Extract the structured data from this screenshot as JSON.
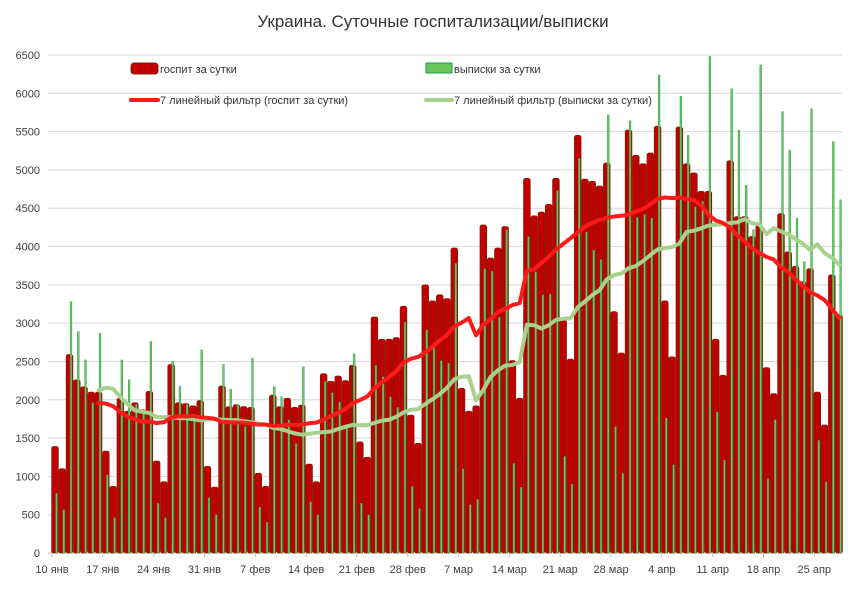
{
  "chart_data": {
    "type": "bar",
    "title": "Украина. Суточные госпитализации/выписки",
    "xlabel": "",
    "ylabel": "",
    "ylim": [
      0,
      6500
    ],
    "yticks": [
      0,
      500,
      1000,
      1500,
      2000,
      2500,
      3000,
      3500,
      4000,
      4500,
      5000,
      5500,
      6000,
      6500
    ],
    "grid": true,
    "legend_position": "top",
    "x_start": "10 янв",
    "x_end": "28 апр",
    "xtick_labels": [
      "10 янв",
      "17 янв",
      "24 янв",
      "31 янв",
      "7 фев",
      "14 фев",
      "21 фев",
      "28 фев",
      "7 мар",
      "14 мар",
      "21 мар",
      "28 мар",
      "4 апр",
      "11 апр",
      "18 апр",
      "25 апр"
    ],
    "series": [
      {
        "name": "госпит за сутки",
        "kind": "bar",
        "color": "#c00000",
        "values": [
          1390,
          1100,
          2590,
          2260,
          2170,
          2100,
          2100,
          1330,
          870,
          2020,
          1850,
          1960,
          1870,
          2110,
          1200,
          930,
          2460,
          1960,
          1950,
          1920,
          1990,
          1130,
          860,
          2180,
          1910,
          1935,
          1910,
          1900,
          1040,
          870,
          2060,
          1910,
          2020,
          1900,
          1930,
          1160,
          930,
          2340,
          2240,
          2310,
          2250,
          2450,
          1450,
          1250,
          3080,
          2790,
          2790,
          2810,
          3220,
          1800,
          1430,
          3500,
          3290,
          3370,
          3320,
          3980,
          2150,
          1850,
          1920,
          4280,
          3850,
          3980,
          4260,
          2510,
          2020,
          4890,
          4400,
          4450,
          4550,
          4890,
          3040,
          2530,
          5450,
          4880,
          4850,
          4790,
          5090,
          3150,
          2610,
          5520,
          5190,
          5080,
          5220,
          5570,
          3290,
          2560,
          5560,
          5080,
          4960,
          4720,
          4720,
          2790,
          2320,
          5120,
          4390,
          4390,
          4130,
          4280,
          2420,
          2080,
          4430,
          3930,
          3740,
          3540,
          3710,
          2100,
          1670,
          3630,
          3110
        ]
      },
      {
        "name": "выписки за сутки",
        "kind": "bar",
        "color": "#6cc55a",
        "values": [
          780,
          565,
          3280,
          2890,
          2520,
          1960,
          2870,
          1020,
          460,
          2520,
          2260,
          1940,
          1830,
          2760,
          650,
          460,
          2500,
          2175,
          1940,
          1740,
          2650,
          720,
          500,
          2460,
          2140,
          1935,
          1650,
          2545,
          600,
          400,
          2170,
          2040,
          1740,
          1430,
          2430,
          670,
          500,
          2240,
          2090,
          1970,
          1630,
          2600,
          650,
          500,
          2450,
          2300,
          2040,
          1900,
          3010,
          870,
          580,
          2910,
          2740,
          2510,
          2480,
          3780,
          1100,
          630,
          700,
          3710,
          3680,
          3080,
          4220,
          1170,
          860,
          4130,
          3670,
          3370,
          3380,
          4730,
          1260,
          900,
          5150,
          4190,
          3950,
          3830,
          5720,
          1650,
          1040,
          5640,
          4380,
          4420,
          4370,
          6240,
          1760,
          1150,
          5960,
          5450,
          4520,
          4590,
          6480,
          1840,
          1210,
          6060,
          5520,
          4800,
          4220,
          6370,
          970,
          1740,
          5760,
          5260,
          4370,
          3800,
          5800,
          1470,
          930,
          5370,
          4610
        ]
      },
      {
        "name": "7 линейный фильтр (госпит за сутки)",
        "kind": "line",
        "color": "#ff1a1a",
        "moving_average_of": "госпит за сутки",
        "window": 7
      },
      {
        "name": "7 линейный фильтр (выписки за сутки)",
        "kind": "line",
        "color": "#a9d18e",
        "moving_average_of": "выписки за сутки",
        "window": 7
      }
    ]
  }
}
